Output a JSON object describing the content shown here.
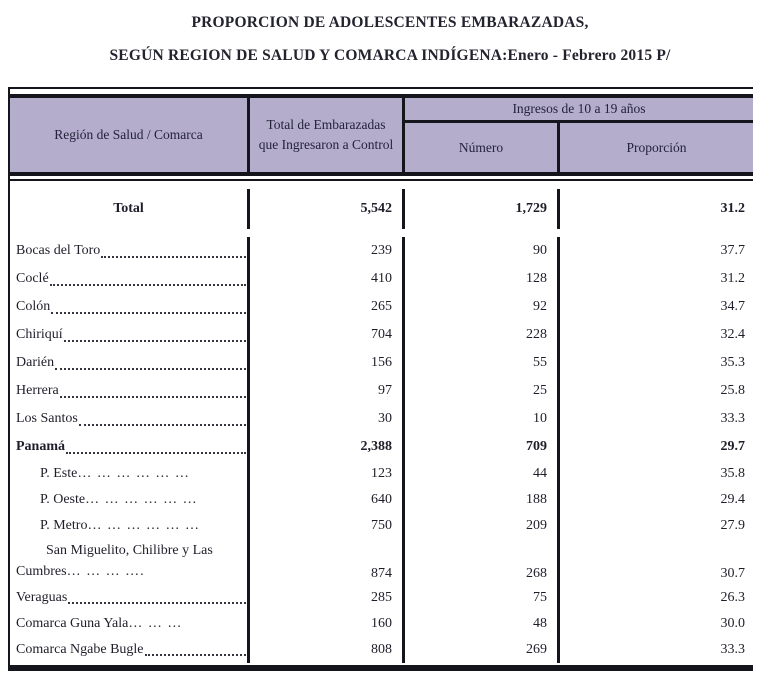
{
  "title": {
    "line1": "PROPORCION DE  ADOLESCENTES EMBARAZADAS,",
    "line2": "SEGÚN REGION DE SALUD Y COMARCA INDÍGENA:Enero - Febrero 2015 P/"
  },
  "table": {
    "header": {
      "region": "Región de Salud / Comarca",
      "total": "Total de Embarazadas que Ingresaron a Control",
      "ingresos": "Ingresos de 10 a 19 años",
      "numero": "Número",
      "proporcion": "Proporción"
    },
    "total_row": {
      "label": "Total",
      "total": "5,542",
      "numero": "1,729",
      "proporcion": "31.2"
    },
    "rows": [
      {
        "name": "Bocas del Toro",
        "dots": "",
        "total": "239",
        "numero": "90",
        "proporcion": "37.7"
      },
      {
        "name": "Coclé",
        "dots": "",
        "total": "410",
        "numero": "128",
        "proporcion": "31.2"
      },
      {
        "name": "Colón",
        "dots": "",
        "total": "265",
        "numero": "92",
        "proporcion": "34.7"
      },
      {
        "name": "Chiriquí",
        "dots": "",
        "total": "704",
        "numero": "228",
        "proporcion": "32.4"
      },
      {
        "name": "Darién",
        "dots": "",
        "total": "156",
        "numero": "55",
        "proporcion": "35.3"
      },
      {
        "name": "Herrera",
        "dots": "",
        "total": "97",
        "numero": "25",
        "proporcion": "25.8"
      },
      {
        "name": "Los Santos",
        "dots": "",
        "total": "30",
        "numero": "10",
        "proporcion": "33.3"
      },
      {
        "name": "Panamá",
        "dots": "",
        "total": "2,388",
        "numero": "709",
        "proporcion": "29.7"
      },
      {
        "name": "P. Este",
        "dots": "… … … … … …",
        "total": "123",
        "numero": "44",
        "proporcion": "35.8"
      },
      {
        "name": "P. Oeste",
        "dots": "… … … … … …",
        "total": "640",
        "numero": "188",
        "proporcion": "29.4"
      },
      {
        "name": "P. Metro",
        "dots": "… … … … … …",
        "total": "750",
        "numero": "209",
        "proporcion": "27.9"
      },
      {
        "name_line1": "San Miguelito, Chilibre y Las",
        "name_line2": "Cumbres",
        "dots": "… … … ….",
        "total": "874",
        "numero": "268",
        "proporcion": "30.7"
      },
      {
        "name": "Veraguas",
        "dots": "",
        "total": "285",
        "numero": "75",
        "proporcion": "26.3"
      },
      {
        "name": "Comarca Guna Yala",
        "dots": "… … …",
        "total": "160",
        "numero": "48",
        "proporcion": "30.0"
      },
      {
        "name": "Comarca Ngabe Bugle",
        "dots": "",
        "total": "808",
        "numero": "269",
        "proporcion": "33.3"
      }
    ]
  }
}
